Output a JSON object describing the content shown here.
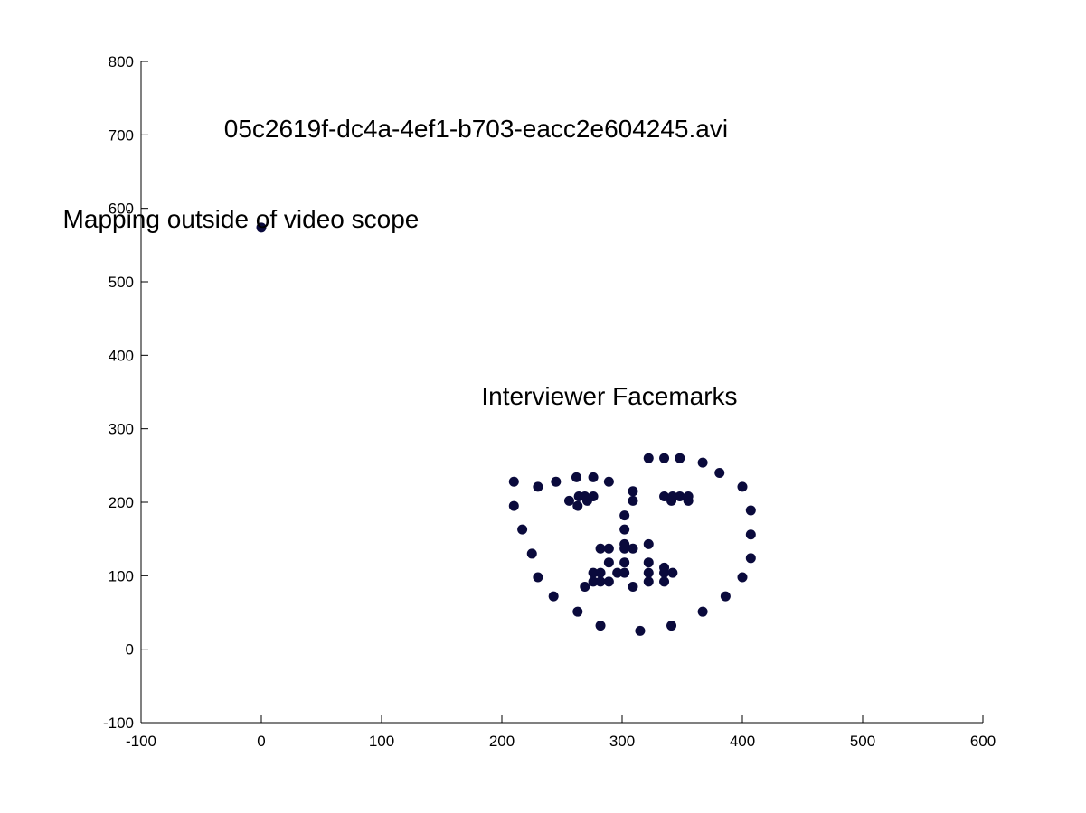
{
  "chart_data": {
    "type": "scatter",
    "title": "",
    "xlabel": "",
    "ylabel": "",
    "xlim": [
      -100,
      600
    ],
    "ylim": [
      -100,
      800
    ],
    "x_ticks": [
      -100,
      0,
      100,
      200,
      300,
      400,
      500,
      600
    ],
    "y_ticks": [
      -100,
      0,
      100,
      200,
      300,
      400,
      500,
      600,
      700,
      800
    ],
    "x_tick_labels": [
      "-100",
      "0",
      "100",
      "200",
      "300",
      "400",
      "500",
      "600"
    ],
    "y_tick_labels": [
      "-100",
      "0",
      "100",
      "200",
      "300",
      "400",
      "500",
      "600",
      "700",
      "800"
    ],
    "grid": false,
    "marker_color": "#0a0a3c",
    "annotations": [
      {
        "text": "05c2619f-dc4a-4ef1-b703-eacc2e604245.avi",
        "x": -31,
        "y": 697
      },
      {
        "text": "Mapping outside of video scope",
        "x": -165,
        "y": 574
      },
      {
        "text": "Interviewer Facemarks",
        "x": 183,
        "y": 333
      }
    ],
    "series": [
      {
        "name": "",
        "points": [
          [
            210,
            228
          ],
          [
            210,
            195
          ],
          [
            217,
            163
          ],
          [
            225,
            130
          ],
          [
            230,
            98
          ],
          [
            243,
            72
          ],
          [
            263,
            51
          ],
          [
            282,
            32
          ],
          [
            315,
            25
          ],
          [
            341,
            32
          ],
          [
            367,
            51
          ],
          [
            386,
            72
          ],
          [
            400,
            98
          ],
          [
            407,
            124
          ],
          [
            407,
            156
          ],
          [
            407,
            189
          ],
          [
            400,
            221
          ],
          [
            381,
            240
          ],
          [
            367,
            254
          ],
          [
            230,
            221
          ],
          [
            245,
            228
          ],
          [
            262,
            234
          ],
          [
            276,
            234
          ],
          [
            289,
            228
          ],
          [
            322,
            260
          ],
          [
            335,
            260
          ],
          [
            348,
            260
          ],
          [
            256,
            202
          ],
          [
            263,
            195
          ],
          [
            264,
            208
          ],
          [
            269,
            208
          ],
          [
            271,
            202
          ],
          [
            276,
            208
          ],
          [
            335,
            208
          ],
          [
            341,
            202
          ],
          [
            342,
            208
          ],
          [
            348,
            208
          ],
          [
            355,
            202
          ],
          [
            355,
            208
          ],
          [
            309,
            215
          ],
          [
            309,
            202
          ],
          [
            302,
            182
          ],
          [
            302,
            163
          ],
          [
            302,
            143
          ],
          [
            282,
            137
          ],
          [
            289,
            137
          ],
          [
            302,
            137
          ],
          [
            309,
            137
          ],
          [
            322,
            143
          ],
          [
            289,
            118
          ],
          [
            302,
            118
          ],
          [
            322,
            118
          ],
          [
            335,
            111
          ],
          [
            276,
            104
          ],
          [
            282,
            104
          ],
          [
            296,
            104
          ],
          [
            302,
            104
          ],
          [
            322,
            104
          ],
          [
            335,
            104
          ],
          [
            342,
            104
          ],
          [
            276,
            92
          ],
          [
            282,
            92
          ],
          [
            289,
            92
          ],
          [
            322,
            92
          ],
          [
            335,
            92
          ],
          [
            269,
            85
          ],
          [
            309,
            85
          ],
          [
            0,
            574
          ]
        ]
      }
    ]
  }
}
